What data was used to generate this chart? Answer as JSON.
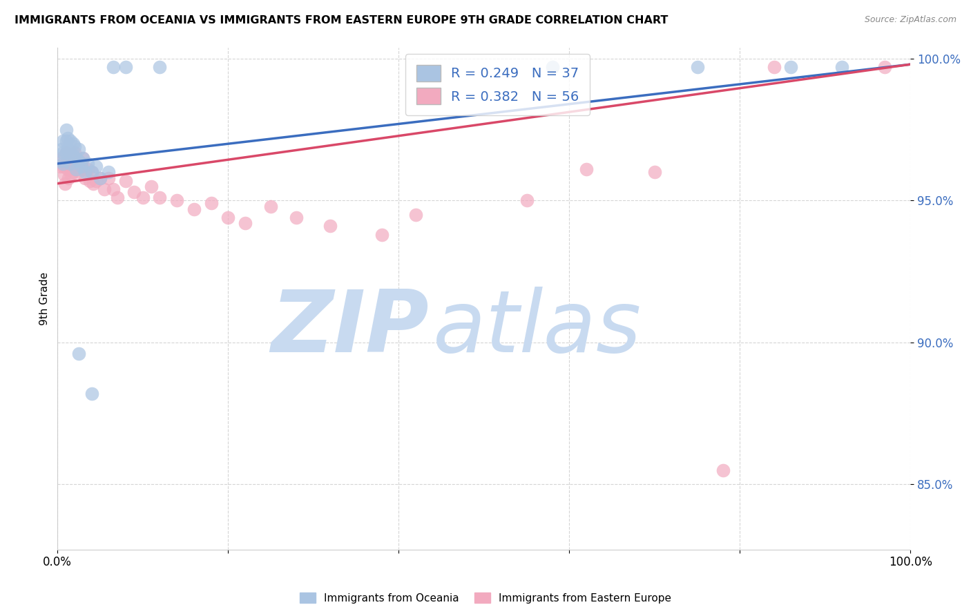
{
  "title": "IMMIGRANTS FROM OCEANIA VS IMMIGRANTS FROM EASTERN EUROPE 9TH GRADE CORRELATION CHART",
  "source": "Source: ZipAtlas.com",
  "ylabel": "9th Grade",
  "legend_blue_r": "R = 0.249",
  "legend_blue_n": "N = 37",
  "legend_pink_r": "R = 0.382",
  "legend_pink_n": "N = 56",
  "blue_color": "#aac4e2",
  "pink_color": "#f2aabf",
  "blue_line_color": "#3b6dbf",
  "pink_line_color": "#d94868",
  "watermark_zip_color": "#c8daf0",
  "watermark_atlas_color": "#c8daf0",
  "xlim": [
    0.0,
    1.0
  ],
  "ylim": [
    0.827,
    1.004
  ],
  "yticks": [
    0.85,
    0.9,
    0.95,
    1.0
  ],
  "ytick_labels": [
    "85.0%",
    "90.0%",
    "95.0%",
    "100.0%"
  ],
  "xtick_positions": [
    0.0,
    0.2,
    0.4,
    0.6,
    0.8,
    1.0
  ],
  "xtick_labels": [
    "0.0%",
    "",
    "",
    "",
    "",
    "100.0%"
  ],
  "blue_scatter_x": [
    0.005,
    0.005,
    0.006,
    0.006,
    0.006,
    0.01,
    0.01,
    0.01,
    0.012,
    0.012,
    0.015,
    0.015,
    0.015,
    0.018,
    0.018,
    0.02,
    0.022,
    0.022,
    0.025,
    0.025,
    0.028,
    0.03,
    0.032,
    0.035,
    0.04,
    0.045,
    0.05,
    0.06,
    0.065,
    0.08,
    0.12,
    0.025,
    0.04,
    0.58,
    0.75,
    0.86,
    0.92
  ],
  "blue_scatter_y": [
    0.968,
    0.964,
    0.971,
    0.967,
    0.963,
    0.975,
    0.971,
    0.967,
    0.972,
    0.968,
    0.971,
    0.967,
    0.963,
    0.97,
    0.966,
    0.969,
    0.965,
    0.961,
    0.968,
    0.964,
    0.962,
    0.965,
    0.96,
    0.963,
    0.96,
    0.962,
    0.958,
    0.96,
    0.997,
    0.997,
    0.997,
    0.896,
    0.882,
    0.997,
    0.997,
    0.997,
    0.997
  ],
  "pink_scatter_x": [
    0.003,
    0.005,
    0.007,
    0.008,
    0.009,
    0.01,
    0.01,
    0.012,
    0.012,
    0.013,
    0.015,
    0.015,
    0.016,
    0.017,
    0.018,
    0.02,
    0.02,
    0.022,
    0.022,
    0.025,
    0.025,
    0.028,
    0.03,
    0.03,
    0.032,
    0.035,
    0.038,
    0.04,
    0.042,
    0.045,
    0.05,
    0.055,
    0.06,
    0.065,
    0.07,
    0.08,
    0.09,
    0.1,
    0.11,
    0.12,
    0.14,
    0.16,
    0.18,
    0.2,
    0.22,
    0.25,
    0.28,
    0.32,
    0.38,
    0.42,
    0.55,
    0.62,
    0.7,
    0.78,
    0.84,
    0.97
  ],
  "pink_scatter_y": [
    0.962,
    0.965,
    0.962,
    0.959,
    0.956,
    0.967,
    0.963,
    0.965,
    0.961,
    0.958,
    0.966,
    0.962,
    0.959,
    0.963,
    0.96,
    0.967,
    0.963,
    0.965,
    0.961,
    0.964,
    0.96,
    0.963,
    0.965,
    0.961,
    0.958,
    0.961,
    0.957,
    0.96,
    0.956,
    0.957,
    0.958,
    0.954,
    0.958,
    0.954,
    0.951,
    0.957,
    0.953,
    0.951,
    0.955,
    0.951,
    0.95,
    0.947,
    0.949,
    0.944,
    0.942,
    0.948,
    0.944,
    0.941,
    0.938,
    0.945,
    0.95,
    0.961,
    0.96,
    0.855,
    0.997,
    0.997
  ],
  "blue_line_y_start": 0.963,
  "blue_line_y_end": 0.998,
  "pink_line_y_start": 0.956,
  "pink_line_y_end": 0.998
}
